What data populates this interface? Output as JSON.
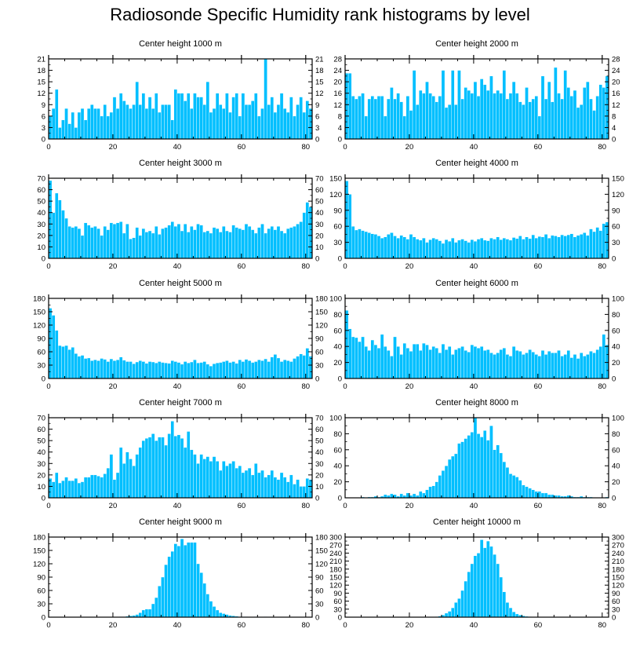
{
  "title": "Radiosonde Specific Humidity rank histograms by level",
  "colors": {
    "bar": "#00BFFF",
    "bar_edge": "#FFFFFF",
    "axis": "#000000"
  },
  "chart_data": [
    {
      "type": "bar",
      "title": "Center height 1000 m",
      "ylim": [
        0,
        21
      ],
      "yticks": [
        0,
        3,
        6,
        9,
        12,
        15,
        18,
        21
      ],
      "xlim": [
        0,
        82
      ],
      "xticks": [
        0,
        20,
        40,
        60,
        80
      ],
      "values": [
        6,
        8,
        13,
        3,
        5,
        8,
        4,
        7,
        3,
        7,
        8,
        5,
        8,
        9,
        8,
        8,
        6,
        9,
        6,
        7,
        11,
        8,
        12,
        10,
        9,
        8,
        9,
        15,
        9,
        12,
        8,
        11,
        8,
        12,
        7,
        9,
        9,
        9,
        5,
        13,
        12,
        12,
        10,
        12,
        8,
        12,
        11,
        11,
        9,
        15,
        7,
        8,
        12,
        9,
        8,
        12,
        7,
        11,
        12,
        6,
        12,
        9,
        9,
        10,
        12,
        6,
        8,
        21,
        9,
        11,
        7,
        9,
        12,
        8,
        7,
        11,
        6,
        9,
        11,
        7,
        10,
        8
      ]
    },
    {
      "type": "bar",
      "title": "Center height 2000 m",
      "ylim": [
        0,
        28
      ],
      "yticks": [
        0,
        4,
        8,
        12,
        16,
        20,
        24,
        28
      ],
      "xlim": [
        0,
        82
      ],
      "xticks": [
        0,
        20,
        40,
        60,
        80
      ],
      "values": [
        23,
        23,
        15,
        14,
        15,
        16,
        8,
        14,
        15,
        14,
        15,
        15,
        8,
        14,
        18,
        14,
        16,
        13,
        8,
        15,
        10,
        24,
        12,
        17,
        16,
        20,
        16,
        15,
        13,
        15,
        24,
        11,
        12,
        24,
        12,
        24,
        14,
        18,
        17,
        16,
        20,
        15,
        21,
        19,
        17,
        22,
        16,
        17,
        16,
        24,
        14,
        16,
        20,
        16,
        13,
        12,
        18,
        13,
        14,
        15,
        8,
        22,
        14,
        20,
        13,
        25,
        16,
        14,
        24,
        18,
        15,
        17,
        11,
        12,
        18,
        20,
        14,
        10,
        15,
        19,
        18,
        22
      ]
    },
    {
      "type": "bar",
      "title": "Center height 3000 m",
      "ylim": [
        0,
        70
      ],
      "yticks": [
        0,
        10,
        20,
        30,
        40,
        50,
        60,
        70
      ],
      "xlim": [
        0,
        82
      ],
      "xticks": [
        0,
        20,
        40,
        60,
        80
      ],
      "values": [
        68,
        40,
        57,
        51,
        42,
        35,
        28,
        27,
        28,
        26,
        20,
        31,
        29,
        27,
        28,
        26,
        20,
        28,
        25,
        31,
        30,
        31,
        32,
        22,
        30,
        17,
        18,
        27,
        20,
        26,
        23,
        24,
        22,
        28,
        21,
        26,
        27,
        29,
        32,
        28,
        30,
        24,
        30,
        23,
        28,
        25,
        30,
        29,
        23,
        24,
        22,
        27,
        26,
        23,
        28,
        24,
        23,
        29,
        27,
        26,
        25,
        30,
        28,
        25,
        22,
        27,
        30,
        22,
        26,
        28,
        25,
        28,
        24,
        22,
        26,
        27,
        28,
        30,
        32,
        40,
        49,
        45
      ]
    },
    {
      "type": "bar",
      "title": "Center height 4000 m",
      "ylim": [
        0,
        150
      ],
      "yticks": [
        0,
        30,
        60,
        90,
        120,
        150
      ],
      "xlim": [
        0,
        82
      ],
      "xticks": [
        0,
        20,
        40,
        60,
        80
      ],
      "values": [
        145,
        120,
        60,
        53,
        55,
        52,
        50,
        48,
        46,
        45,
        42,
        38,
        40,
        45,
        48,
        42,
        38,
        43,
        40,
        36,
        45,
        40,
        36,
        34,
        38,
        30,
        35,
        38,
        36,
        33,
        28,
        35,
        32,
        38,
        30,
        34,
        36,
        33,
        30,
        35,
        32,
        36,
        38,
        34,
        33,
        38,
        36,
        40,
        35,
        38,
        36,
        34,
        39,
        37,
        42,
        36,
        40,
        37,
        44,
        38,
        41,
        40,
        45,
        38,
        43,
        42,
        40,
        44,
        42,
        44,
        46,
        40,
        43,
        45,
        48,
        43,
        55,
        50,
        58,
        52,
        65,
        68
      ]
    },
    {
      "type": "bar",
      "title": "Center height 5000 m",
      "ylim": [
        0,
        180
      ],
      "yticks": [
        0,
        30,
        60,
        90,
        120,
        150,
        180
      ],
      "xlim": [
        0,
        82
      ],
      "xticks": [
        0,
        20,
        40,
        60,
        80
      ],
      "values": [
        158,
        142,
        108,
        74,
        72,
        74,
        65,
        70,
        56,
        50,
        52,
        45,
        46,
        40,
        42,
        40,
        45,
        43,
        38,
        44,
        40,
        42,
        48,
        41,
        38,
        38,
        33,
        37,
        40,
        38,
        34,
        38,
        37,
        35,
        38,
        36,
        35,
        34,
        40,
        38,
        36,
        32,
        38,
        35,
        37,
        42,
        35,
        36,
        38,
        32,
        28,
        33,
        35,
        36,
        38,
        40,
        36,
        38,
        34,
        42,
        38,
        43,
        40,
        36,
        38,
        42,
        40,
        44,
        38,
        48,
        54,
        46,
        38,
        42,
        40,
        38,
        45,
        50,
        55,
        52,
        68,
        50
      ]
    },
    {
      "type": "bar",
      "title": "Center height 6000 m",
      "ylim": [
        0,
        100
      ],
      "yticks": [
        0,
        20,
        40,
        60,
        80,
        100
      ],
      "xlim": [
        0,
        82
      ],
      "xticks": [
        0,
        20,
        40,
        60,
        80
      ],
      "values": [
        85,
        62,
        52,
        51,
        46,
        52,
        40,
        35,
        48,
        42,
        38,
        55,
        40,
        35,
        28,
        52,
        40,
        30,
        44,
        38,
        34,
        43,
        43,
        35,
        44,
        42,
        36,
        40,
        38,
        32,
        43,
        36,
        40,
        30,
        36,
        38,
        40,
        35,
        33,
        42,
        40,
        38,
        40,
        35,
        36,
        32,
        30,
        32,
        36,
        38,
        30,
        28,
        40,
        35,
        34,
        30,
        32,
        36,
        33,
        30,
        28,
        35,
        30,
        34,
        32,
        32,
        35,
        28,
        30,
        35,
        26,
        30,
        25,
        32,
        28,
        30,
        34,
        32,
        36,
        40,
        55,
        42
      ]
    },
    {
      "type": "bar",
      "title": "Center height 7000 m",
      "ylim": [
        0,
        70
      ],
      "yticks": [
        0,
        10,
        20,
        30,
        40,
        50,
        60,
        70
      ],
      "xlim": [
        0,
        82
      ],
      "xticks": [
        0,
        20,
        40,
        60,
        80
      ],
      "values": [
        17,
        14,
        22,
        13,
        15,
        18,
        15,
        15,
        17,
        13,
        14,
        18,
        18,
        20,
        20,
        19,
        18,
        21,
        26,
        38,
        16,
        22,
        44,
        30,
        40,
        34,
        28,
        38,
        44,
        50,
        52,
        53,
        56,
        50,
        53,
        53,
        46,
        56,
        67,
        54,
        55,
        52,
        44,
        58,
        42,
        38,
        30,
        38,
        34,
        36,
        32,
        36,
        32,
        24,
        32,
        28,
        30,
        32,
        26,
        28,
        22,
        24,
        26,
        20,
        30,
        22,
        24,
        18,
        20,
        24,
        18,
        16,
        22,
        18,
        14,
        20,
        12,
        16,
        10,
        10,
        17,
        16
      ]
    },
    {
      "type": "bar",
      "title": "Center height 8000 m",
      "ylim": [
        0,
        100
      ],
      "yticks": [
        0,
        20,
        40,
        60,
        80,
        100
      ],
      "xlim": [
        0,
        82
      ],
      "xticks": [
        0,
        20,
        40,
        60,
        80
      ],
      "values": [
        0,
        0,
        0,
        0,
        0,
        1,
        0,
        1,
        1,
        2,
        1,
        2,
        4,
        3,
        5,
        4,
        2,
        5,
        3,
        6,
        3,
        5,
        3,
        8,
        6,
        10,
        14,
        15,
        20,
        28,
        34,
        40,
        48,
        52,
        55,
        68,
        70,
        74,
        78,
        82,
        100,
        80,
        76,
        84,
        72,
        90,
        60,
        66,
        56,
        45,
        38,
        30,
        28,
        26,
        22,
        16,
        14,
        12,
        10,
        8,
        8,
        6,
        6,
        4,
        4,
        3,
        3,
        2,
        2,
        3,
        2,
        1,
        1,
        2,
        1,
        1,
        1,
        0,
        0,
        0,
        0,
        1
      ]
    },
    {
      "type": "bar",
      "title": "Center height 9000 m",
      "ylim": [
        0,
        180
      ],
      "yticks": [
        0,
        30,
        60,
        90,
        120,
        150,
        180
      ],
      "xlim": [
        0,
        82
      ],
      "xticks": [
        0,
        20,
        40,
        60,
        80
      ],
      "values": [
        0,
        0,
        0,
        0,
        0,
        0,
        0,
        0,
        0,
        0,
        0,
        0,
        0,
        0,
        0,
        0,
        0,
        0,
        0,
        0,
        0,
        0,
        1,
        1,
        2,
        3,
        4,
        6,
        10,
        16,
        18,
        18,
        30,
        44,
        70,
        90,
        118,
        136,
        148,
        165,
        160,
        176,
        162,
        168,
        168,
        168,
        120,
        100,
        76,
        52,
        36,
        24,
        16,
        10,
        8,
        6,
        4,
        3,
        2,
        1,
        1,
        1,
        0,
        0,
        1,
        0,
        0,
        1,
        0,
        0,
        0,
        0,
        0,
        0,
        0,
        0,
        0,
        0,
        0,
        0,
        0,
        0
      ]
    },
    {
      "type": "bar",
      "title": "Center height 10000 m",
      "ylim": [
        0,
        300
      ],
      "yticks": [
        0,
        30,
        60,
        90,
        120,
        150,
        180,
        210,
        240,
        270,
        300
      ],
      "xlim": [
        0,
        82
      ],
      "xticks": [
        0,
        20,
        40,
        60,
        80
      ],
      "values": [
        0,
        0,
        0,
        0,
        0,
        0,
        0,
        0,
        0,
        0,
        0,
        0,
        0,
        0,
        0,
        0,
        0,
        0,
        0,
        0,
        0,
        0,
        0,
        0,
        0,
        0,
        0,
        1,
        2,
        4,
        8,
        15,
        22,
        35,
        55,
        70,
        100,
        135,
        170,
        200,
        230,
        240,
        290,
        260,
        285,
        265,
        235,
        200,
        150,
        95,
        55,
        35,
        20,
        12,
        8,
        5,
        3,
        2,
        1,
        1,
        0,
        0,
        0,
        0,
        0,
        0,
        0,
        0,
        0,
        0,
        0,
        0,
        0,
        0,
        0,
        0,
        0,
        0,
        0,
        0,
        0,
        0
      ]
    }
  ]
}
